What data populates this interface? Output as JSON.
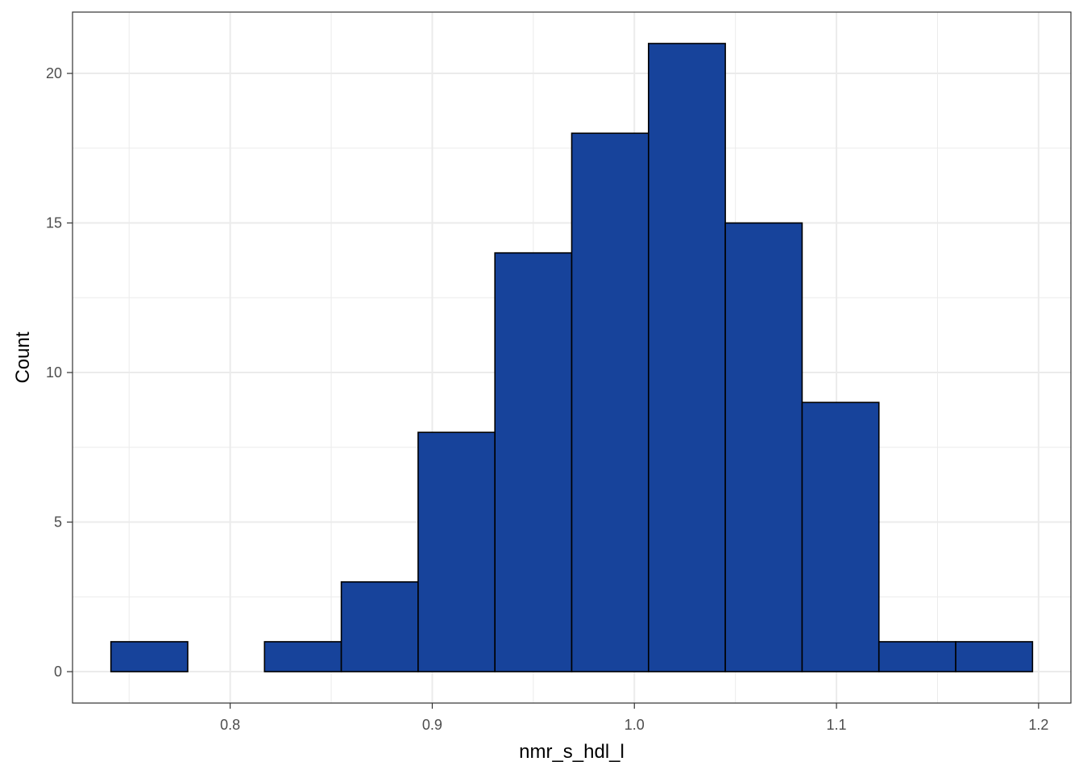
{
  "chart_data": {
    "type": "bar",
    "subtype": "histogram",
    "xlabel": "nmr_s_hdl_l",
    "ylabel": "Count",
    "xlim": [
      0.722,
      1.216
    ],
    "ylim": [
      -1.05,
      22.05
    ],
    "x_ticks": [
      0.8,
      0.9,
      1.0,
      1.1,
      1.2
    ],
    "x_tick_labels": [
      "0.8",
      "0.9",
      "1.0",
      "1.1",
      "1.2"
    ],
    "y_ticks": [
      0,
      5,
      10,
      15,
      20
    ],
    "y_tick_labels": [
      "0",
      "5",
      "10",
      "15",
      "20"
    ],
    "grid": true,
    "legend": "none",
    "bar_fill": "#17439B",
    "bar_outline": "#000000",
    "bins": [
      {
        "x0": 0.741,
        "x1": 0.779,
        "count": 1
      },
      {
        "x0": 0.779,
        "x1": 0.817,
        "count": 0
      },
      {
        "x0": 0.817,
        "x1": 0.855,
        "count": 1
      },
      {
        "x0": 0.855,
        "x1": 0.893,
        "count": 3
      },
      {
        "x0": 0.893,
        "x1": 0.931,
        "count": 8
      },
      {
        "x0": 0.931,
        "x1": 0.969,
        "count": 14
      },
      {
        "x0": 0.969,
        "x1": 1.007,
        "count": 18
      },
      {
        "x0": 1.007,
        "x1": 1.045,
        "count": 21
      },
      {
        "x0": 1.045,
        "x1": 1.083,
        "count": 15
      },
      {
        "x0": 1.083,
        "x1": 1.121,
        "count": 9
      },
      {
        "x0": 1.121,
        "x1": 1.159,
        "count": 1
      },
      {
        "x0": 1.159,
        "x1": 1.197,
        "count": 1
      }
    ]
  }
}
